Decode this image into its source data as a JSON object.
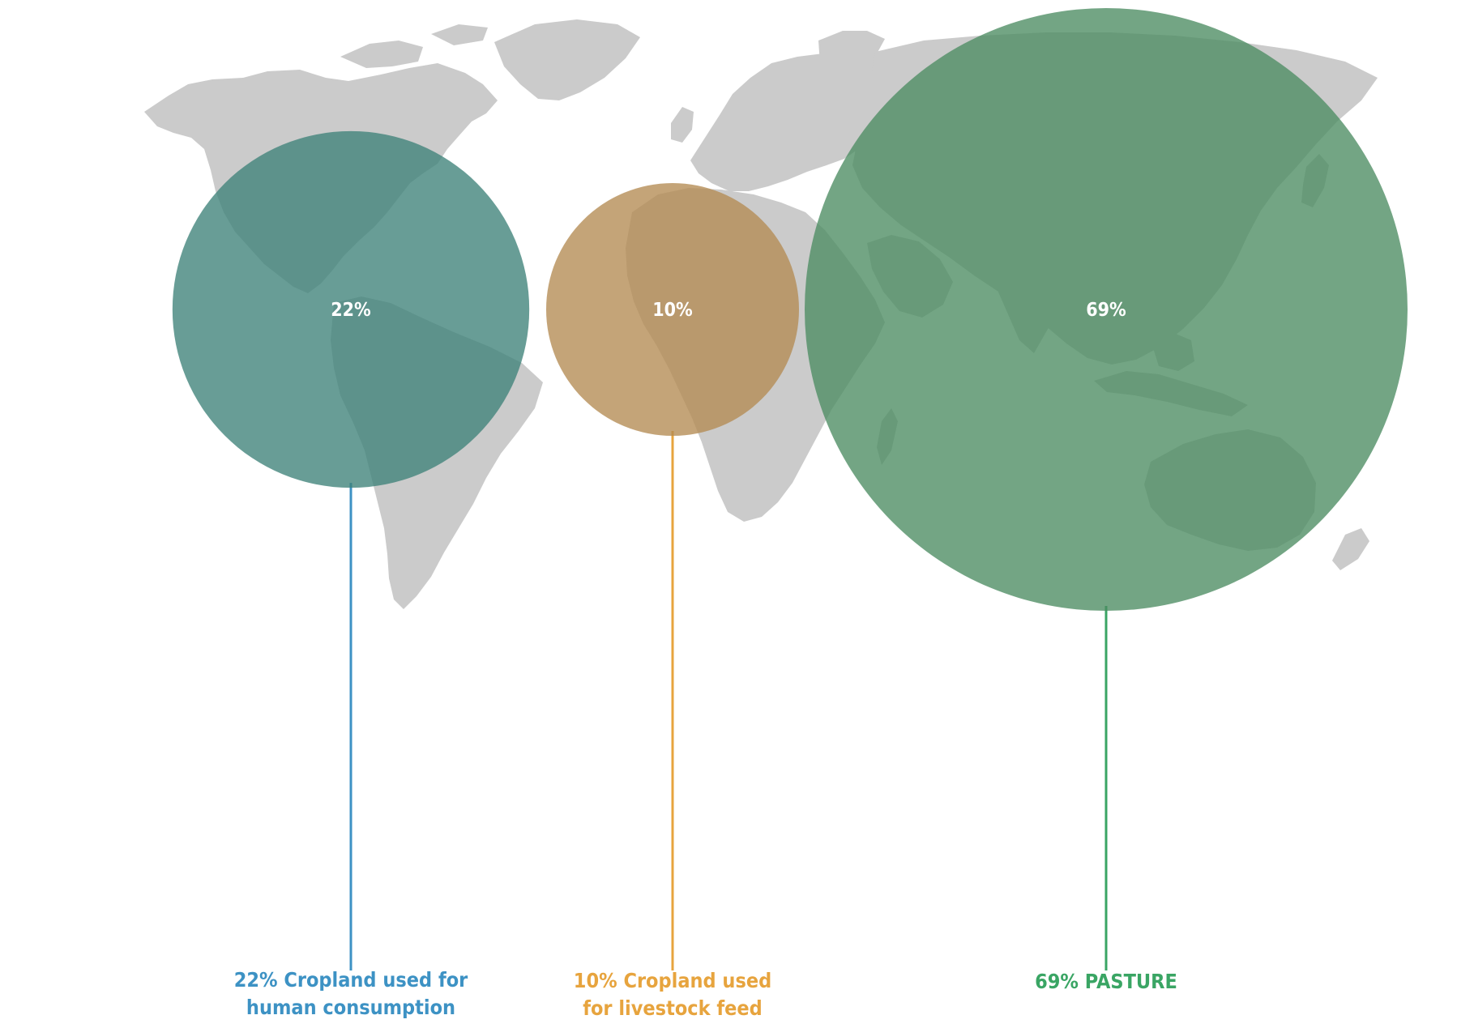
{
  "chart_data": {
    "type": "bubble",
    "title": "",
    "background": "world map silhouette",
    "colors": {
      "map": "#cbcbcb"
    },
    "series": [
      {
        "value": 22,
        "value_label": "22%",
        "caption_lines": [
          "22% Cropland used for",
          "human consumption"
        ],
        "fill": "#3e8278",
        "line": "#3d92c4"
      },
      {
        "value": 10,
        "value_label": "10%",
        "caption_lines": [
          "10% Cropland used",
          "for livestock feed"
        ],
        "fill": "#b38a52",
        "line": "#e7a43e"
      },
      {
        "value": 69,
        "value_label": "69%",
        "caption_lines": [
          "69% PASTURE"
        ],
        "fill": "#4b8c62",
        "line": "#3aa564"
      }
    ]
  }
}
